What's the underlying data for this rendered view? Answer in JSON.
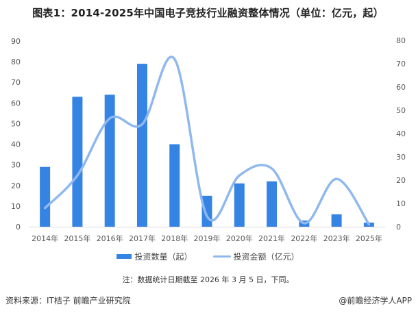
{
  "title": "图表1：2014-2025年中国电子竞技行业融资整体情况（单位：亿元，起）",
  "legend": {
    "bar_label": "投资数量（起）",
    "line_label": "投资金额（亿元）"
  },
  "note": "注：数据统计日期截至 2026 年 3 月 5 日，下同。",
  "source": "资料来源：IT桔子 前瞻产业研究院",
  "credit": "@前瞻经济学人APP",
  "colors": {
    "bar": "#3584e4",
    "line": "#8fb8ef",
    "axis": "#d9d9d9"
  },
  "chart_data": {
    "type": "bar",
    "title": "图表1：2014-2025年中国电子竞技行业融资整体情况（单位：亿元，起）",
    "categories": [
      "2014年",
      "2015年",
      "2016年",
      "2017年",
      "2018年",
      "2019年",
      "2020年",
      "2021年",
      "2022年",
      "2023年",
      "2025年"
    ],
    "series": [
      {
        "name": "投资数量（起）",
        "type": "bar",
        "axis": "left",
        "values": [
          29,
          63,
          64,
          79,
          40,
          15,
          21,
          22,
          3,
          6,
          2
        ]
      },
      {
        "name": "投资金额（亿元）",
        "type": "line",
        "smooth": true,
        "axis": "right",
        "values": [
          8,
          22,
          46.5,
          44,
          72,
          4.5,
          22,
          25,
          1.5,
          20.5,
          1
        ]
      }
    ],
    "left_axis": {
      "min": 0,
      "max": 90,
      "ticks": [
        0,
        10,
        20,
        30,
        40,
        50,
        60,
        70,
        80,
        90
      ]
    },
    "right_axis": {
      "min": 0,
      "max": 80,
      "ticks": [
        0,
        10,
        20,
        30,
        40,
        50,
        60,
        70,
        80
      ]
    },
    "xlabel": "",
    "ylabel": "",
    "grid": false,
    "legend_position": "bottom"
  }
}
